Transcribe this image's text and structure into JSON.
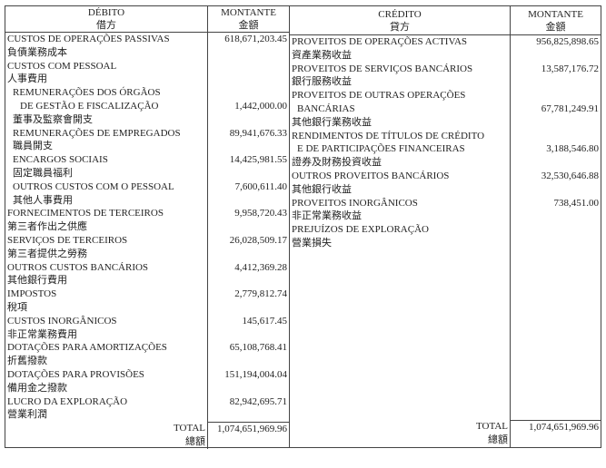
{
  "debit": {
    "header": {
      "title": "DÉBITO",
      "title_zh": "借方",
      "amount": "MONTANTE",
      "amount_zh": "金額"
    },
    "lines": [
      {
        "label": "CUSTOS DE OPERAÇÕES PASSIVAS",
        "amount": "618,671,203.45",
        "indent": 0
      },
      {
        "label": "負債業務成本",
        "amount": "",
        "indent": 0
      },
      {
        "label": "CUSTOS COM PESSOAL",
        "amount": "",
        "indent": 0
      },
      {
        "label": "人事費用",
        "amount": "",
        "indent": 0
      },
      {
        "label": "REMUNERAÇÕES DOS ÓRGÃOS",
        "amount": "",
        "indent": 1
      },
      {
        "label": "DE GESTÃO E FISCALIZAÇÃO",
        "amount": "1,442,000.00",
        "indent": 2
      },
      {
        "label": "董事及監察會開支",
        "amount": "",
        "indent": 1
      },
      {
        "label": "REMUNERAÇÕES DE EMPREGADOS",
        "amount": "89,941,676.33",
        "indent": 1
      },
      {
        "label": "職員開支",
        "amount": "",
        "indent": 1
      },
      {
        "label": "ENCARGOS SOCIAIS",
        "amount": "14,425,981.55",
        "indent": 1
      },
      {
        "label": "固定職員福利",
        "amount": "",
        "indent": 1
      },
      {
        "label": "OUTROS CUSTOS COM O PESSOAL",
        "amount": "7,600,611.40",
        "indent": 1
      },
      {
        "label": "其他人事費用",
        "amount": "",
        "indent": 1
      },
      {
        "label": "FORNECIMENTOS DE TERCEIROS",
        "amount": "9,958,720.43",
        "indent": 0
      },
      {
        "label": "第三者作出之供應",
        "amount": "",
        "indent": 0
      },
      {
        "label": "SERVIÇOS DE TERCEIROS",
        "amount": "26,028,509.17",
        "indent": 0
      },
      {
        "label": "第三者提供之勞務",
        "amount": "",
        "indent": 0
      },
      {
        "label": "OUTROS CUSTOS BANCÁRIOS",
        "amount": "4,412,369.28",
        "indent": 0
      },
      {
        "label": "其他銀行費用",
        "amount": "",
        "indent": 0
      },
      {
        "label": "IMPOSTOS",
        "amount": "2,779,812.74",
        "indent": 0
      },
      {
        "label": "稅項",
        "amount": "",
        "indent": 0
      },
      {
        "label": "CUSTOS INORGÂNICOS",
        "amount": "145,617.45",
        "indent": 0
      },
      {
        "label": "非正常業務費用",
        "amount": "",
        "indent": 0
      },
      {
        "label": "DOTAÇÕES PARA AMORTIZAÇÕES",
        "amount": "65,108,768.41",
        "indent": 0
      },
      {
        "label": "折舊撥款",
        "amount": "",
        "indent": 0
      },
      {
        "label": "DOTAÇÕES PARA PROVISÕES",
        "amount": "151,194,004.04",
        "indent": 0
      },
      {
        "label": "備用金之撥款",
        "amount": "",
        "indent": 0
      },
      {
        "label": "LUCRO DA EXPLORAÇÃO",
        "amount": "82,942,695.71",
        "indent": 0
      },
      {
        "label": "營業利潤",
        "amount": "",
        "indent": 0
      }
    ],
    "total": {
      "label": "TOTAL",
      "label_zh": "總額",
      "amount": "1,074,651,969.96"
    }
  },
  "credit": {
    "header": {
      "title": "CRÉDITO",
      "title_zh": "貸方",
      "amount": "MONTANTE",
      "amount_zh": "金額"
    },
    "lines": [
      {
        "label": "PROVEITOS DE OPERAÇÕES ACTIVAS",
        "amount": "956,825,898.65",
        "indent": 0
      },
      {
        "label": "資產業務收益",
        "amount": "",
        "indent": 0
      },
      {
        "label": "PROVEITOS DE SERVIÇOS BANCÁRIOS",
        "amount": "13,587,176.72",
        "indent": 0
      },
      {
        "label": "銀行服務收益",
        "amount": "",
        "indent": 0
      },
      {
        "label": "PROVEITOS DE OUTRAS OPERAÇÕES",
        "amount": "",
        "indent": 0
      },
      {
        "label": "BANCÁRIAS",
        "amount": "67,781,249.91",
        "indent": 1
      },
      {
        "label": "其他銀行業務收益",
        "amount": "",
        "indent": 0
      },
      {
        "label": "RENDIMENTOS DE TÍTULOS DE CRÉDITO",
        "amount": "",
        "indent": 0
      },
      {
        "label": "E DE PARTICIPAÇÕES FINANCEIRAS",
        "amount": "3,188,546.80",
        "indent": 1
      },
      {
        "label": "證券及財務投資收益",
        "amount": "",
        "indent": 0
      },
      {
        "label": "OUTROS PROVEITOS BANCÁRIOS",
        "amount": "32,530,646.88",
        "indent": 0
      },
      {
        "label": "其他銀行收益",
        "amount": "",
        "indent": 0
      },
      {
        "label": "PROVEITOS INORGÂNICOS",
        "amount": "738,451.00",
        "indent": 0
      },
      {
        "label": "非正常業務收益",
        "amount": "",
        "indent": 0
      },
      {
        "label": "PREJUÍZOS DE EXPLORAÇÃO",
        "amount": "",
        "indent": 0
      },
      {
        "label": "營業損失",
        "amount": "",
        "indent": 0
      }
    ],
    "total": {
      "label": "TOTAL",
      "label_zh": "總額",
      "amount": "1,074,651,969.96"
    }
  }
}
